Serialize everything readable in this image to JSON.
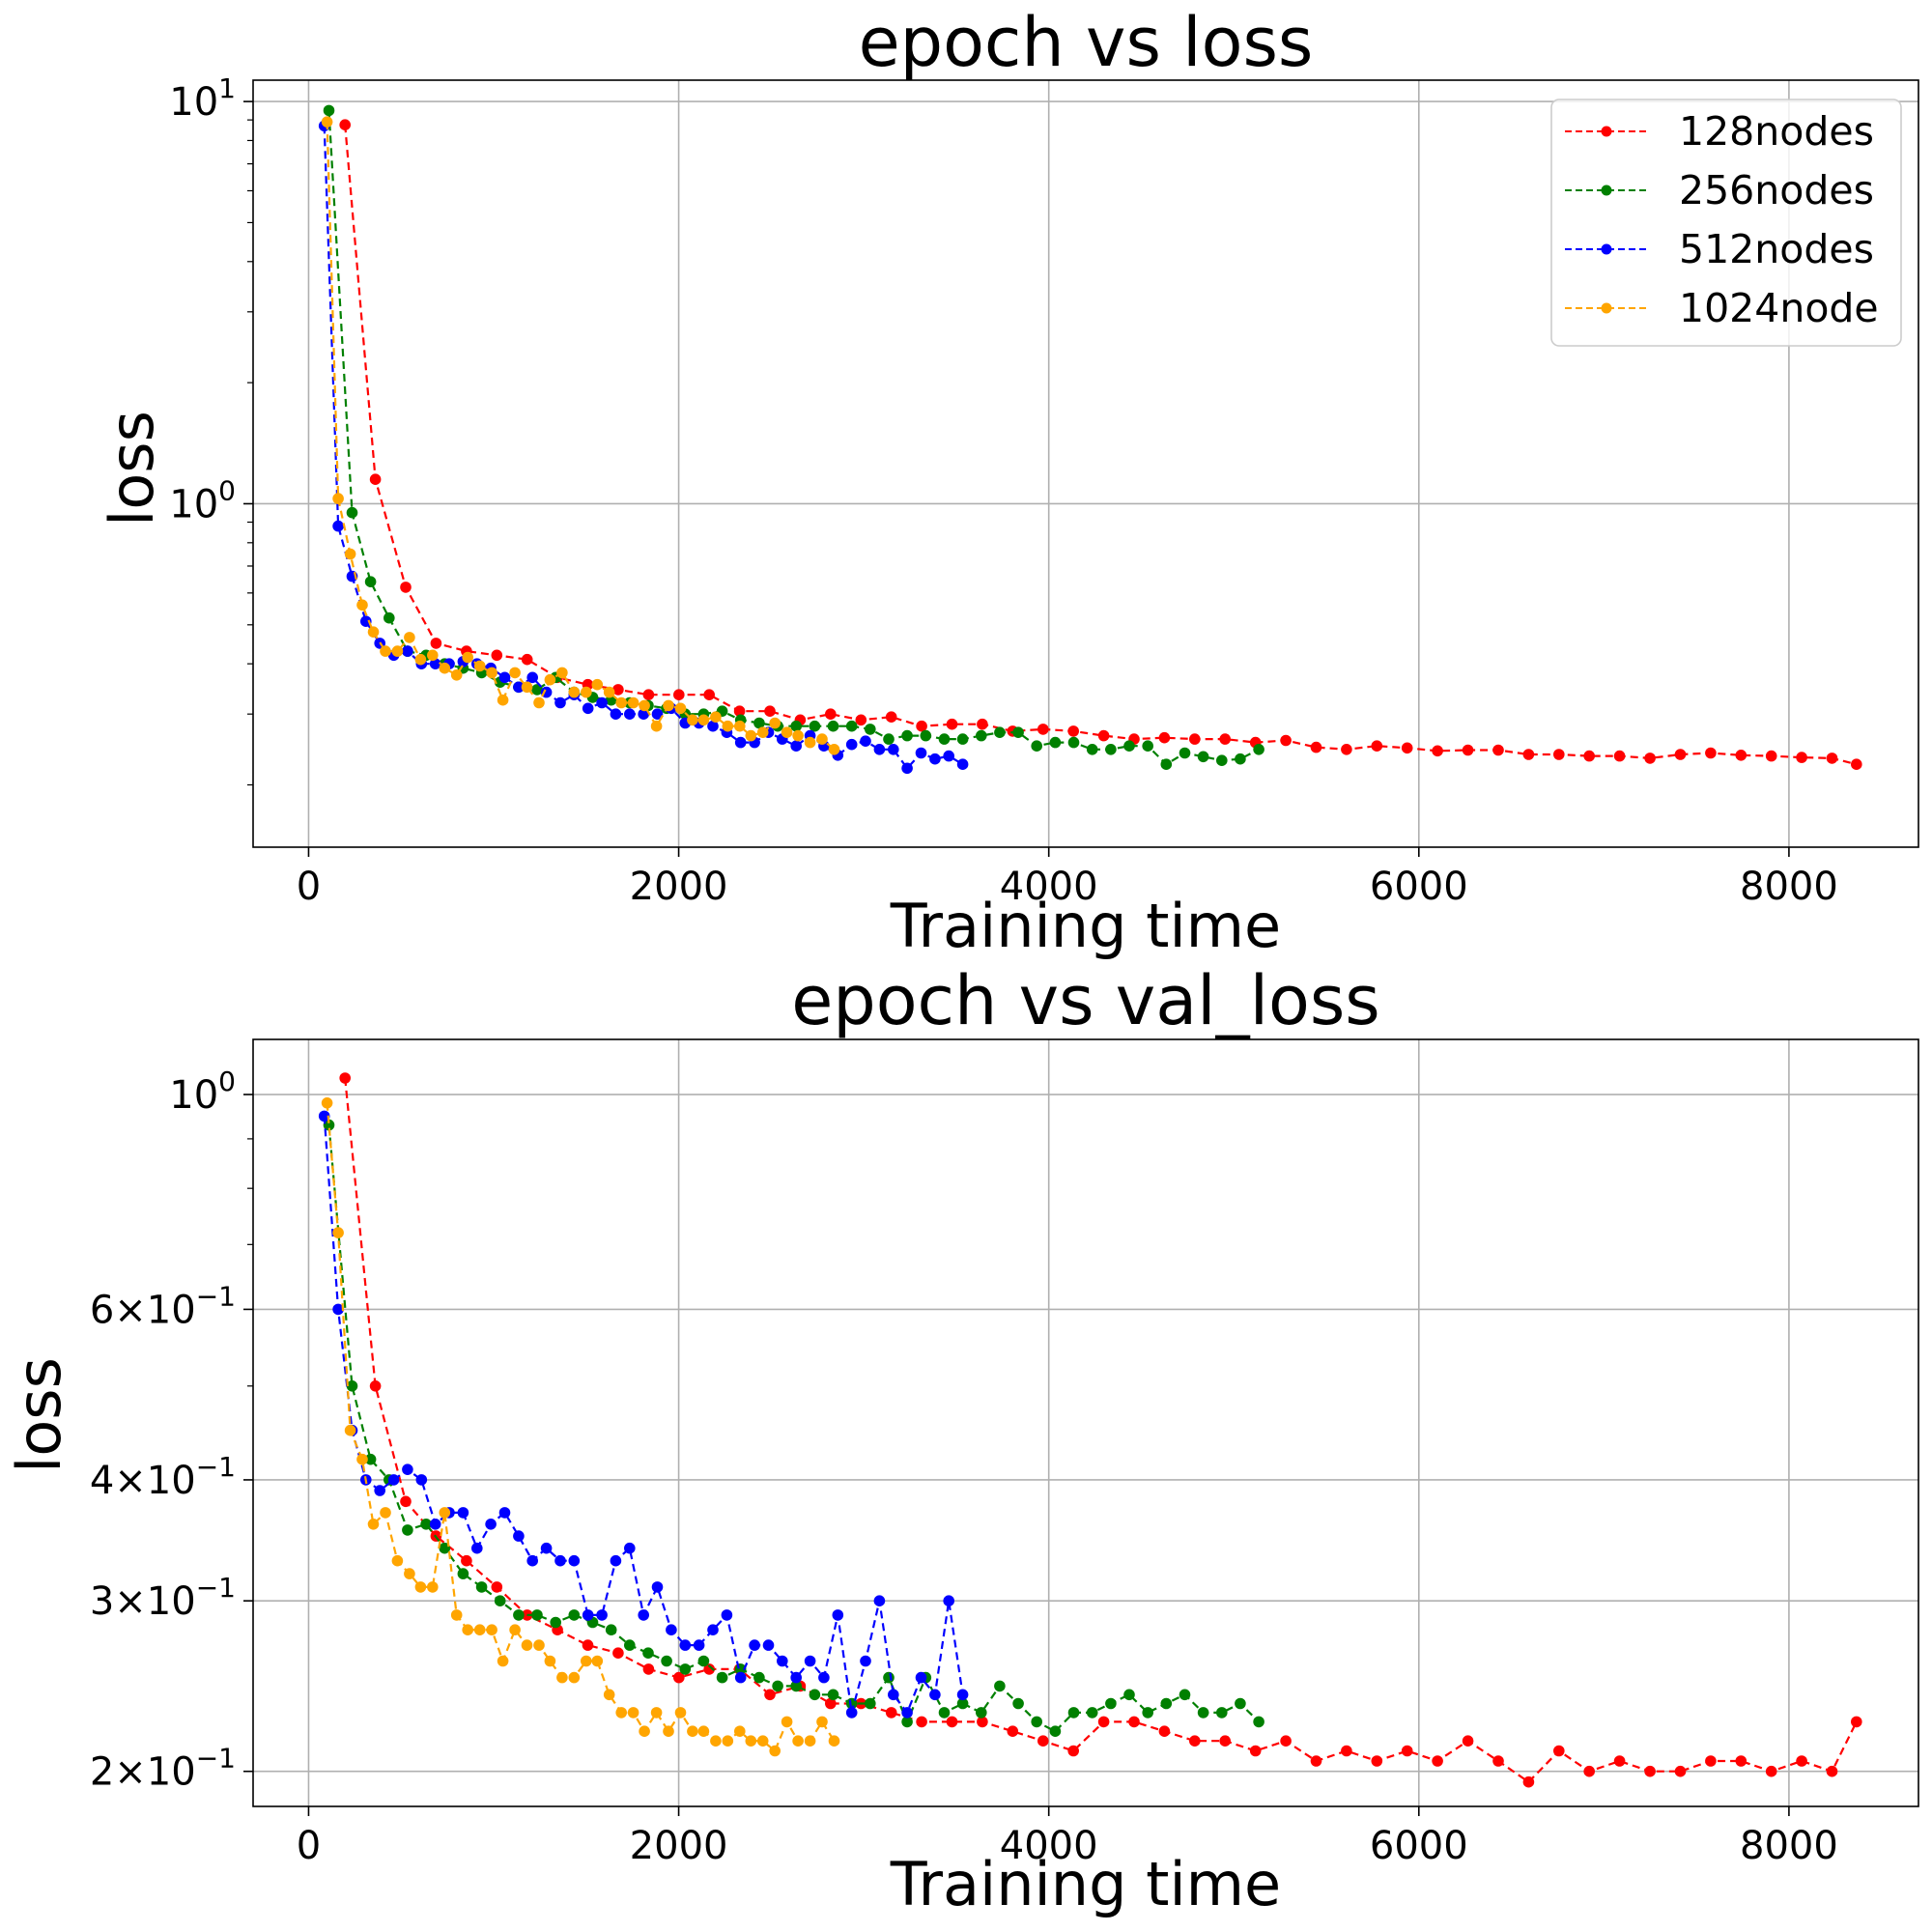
{
  "chart_data": [
    {
      "type": "line",
      "title": "epoch vs loss",
      "xlabel": "Training time",
      "ylabel": "loss",
      "yscale": "log",
      "xlim": [
        -300,
        8700
      ],
      "ylim": [
        0.14,
        11.3
      ],
      "xticks": [
        0,
        2000,
        4000,
        6000,
        8000
      ],
      "yticks": [
        {
          "value": 1,
          "base": "10",
          "exp": "0"
        },
        {
          "value": 10,
          "base": "10",
          "exp": "1"
        }
      ],
      "grid": true,
      "legend": "top-right",
      "series": [
        {
          "name": "128nodes",
          "color": "#ff0000",
          "x": [
            197,
            361,
            525,
            689,
            853,
            1017,
            1181,
            1345,
            1509,
            1673,
            1837,
            2001,
            2165,
            2329,
            2493,
            2657,
            2821,
            2985,
            3149,
            3313,
            3477,
            3641,
            3805,
            3969,
            4133,
            4297,
            4461,
            4625,
            4789,
            4953,
            5117,
            5281,
            5445,
            5609,
            5773,
            5937,
            6101,
            6265,
            6429,
            6593,
            6757,
            6921,
            7085,
            7249,
            7413,
            7577,
            7741,
            7905,
            8069,
            8233,
            8365
          ],
          "y": [
            8.75,
            1.15,
            0.62,
            0.45,
            0.43,
            0.42,
            0.41,
            0.37,
            0.355,
            0.345,
            0.335,
            0.335,
            0.335,
            0.305,
            0.305,
            0.29,
            0.3,
            0.29,
            0.295,
            0.28,
            0.283,
            0.283,
            0.272,
            0.275,
            0.272,
            0.265,
            0.26,
            0.262,
            0.26,
            0.26,
            0.255,
            0.258,
            0.248,
            0.245,
            0.25,
            0.247,
            0.243,
            0.244,
            0.244,
            0.238,
            0.238,
            0.236,
            0.236,
            0.233,
            0.238,
            0.24,
            0.237,
            0.236,
            0.234,
            0.233,
            0.225
          ]
        },
        {
          "name": "256nodes",
          "color": "#008000",
          "x": [
            110,
            235,
            335,
            435,
            535,
            635,
            735,
            835,
            935,
            1035,
            1135,
            1235,
            1335,
            1435,
            1535,
            1635,
            1735,
            1835,
            1935,
            2035,
            2135,
            2235,
            2335,
            2435,
            2535,
            2635,
            2735,
            2835,
            2935,
            3035,
            3135,
            3235,
            3335,
            3435,
            3535,
            3635,
            3735,
            3835,
            3935,
            4035,
            4135,
            4235,
            4335,
            4435,
            4535,
            4635,
            4735,
            4835,
            4935,
            5035,
            5135
          ],
          "y": [
            9.5,
            0.95,
            0.64,
            0.52,
            0.43,
            0.42,
            0.4,
            0.39,
            0.38,
            0.36,
            0.35,
            0.345,
            0.37,
            0.34,
            0.33,
            0.325,
            0.32,
            0.315,
            0.31,
            0.3,
            0.3,
            0.305,
            0.29,
            0.285,
            0.28,
            0.28,
            0.28,
            0.28,
            0.28,
            0.275,
            0.26,
            0.265,
            0.265,
            0.26,
            0.26,
            0.265,
            0.27,
            0.27,
            0.25,
            0.255,
            0.255,
            0.245,
            0.245,
            0.25,
            0.25,
            0.225,
            0.24,
            0.235,
            0.23,
            0.232,
            0.245
          ]
        },
        {
          "name": "512nodes",
          "color": "#0000ff",
          "x": [
            85,
            160,
            235,
            310,
            385,
            460,
            535,
            610,
            685,
            760,
            835,
            910,
            985,
            1060,
            1135,
            1210,
            1285,
            1360,
            1435,
            1510,
            1585,
            1660,
            1735,
            1810,
            1885,
            1960,
            2035,
            2110,
            2185,
            2260,
            2335,
            2410,
            2485,
            2560,
            2635,
            2710,
            2785,
            2860,
            2935,
            3010,
            3085,
            3160,
            3235,
            3310,
            3385,
            3460,
            3535
          ],
          "y": [
            8.7,
            0.88,
            0.66,
            0.51,
            0.45,
            0.42,
            0.43,
            0.4,
            0.4,
            0.4,
            0.405,
            0.4,
            0.39,
            0.37,
            0.35,
            0.37,
            0.34,
            0.32,
            0.335,
            0.31,
            0.32,
            0.3,
            0.3,
            0.3,
            0.3,
            0.31,
            0.285,
            0.285,
            0.28,
            0.27,
            0.255,
            0.255,
            0.27,
            0.26,
            0.25,
            0.265,
            0.25,
            0.237,
            0.252,
            0.257,
            0.245,
            0.245,
            0.22,
            0.24,
            0.232,
            0.236,
            0.225
          ]
        },
        {
          "name": "1024node",
          "color": "#ffa500",
          "x": [
            100,
            160,
            225,
            290,
            350,
            415,
            480,
            545,
            605,
            670,
            735,
            800,
            860,
            925,
            990,
            1050,
            1115,
            1180,
            1245,
            1305,
            1370,
            1435,
            1500,
            1560,
            1625,
            1690,
            1755,
            1815,
            1880,
            1945,
            2010,
            2075,
            2135,
            2200,
            2265,
            2330,
            2390,
            2455,
            2520,
            2585,
            2645,
            2710,
            2775,
            2840
          ],
          "y": [
            8.9,
            1.03,
            0.75,
            0.56,
            0.48,
            0.43,
            0.43,
            0.465,
            0.41,
            0.42,
            0.39,
            0.375,
            0.415,
            0.395,
            0.38,
            0.325,
            0.38,
            0.35,
            0.32,
            0.365,
            0.38,
            0.34,
            0.34,
            0.355,
            0.34,
            0.32,
            0.32,
            0.315,
            0.28,
            0.315,
            0.31,
            0.29,
            0.29,
            0.295,
            0.28,
            0.28,
            0.265,
            0.27,
            0.285,
            0.27,
            0.265,
            0.255,
            0.26,
            0.245
          ]
        }
      ]
    },
    {
      "type": "line",
      "title": "epoch vs val_loss",
      "xlabel": "Training time",
      "ylabel": "loss",
      "yscale": "log",
      "xlim": [
        -300,
        8700
      ],
      "ylim": [
        0.184,
        1.14
      ],
      "xticks": [
        0,
        2000,
        4000,
        6000,
        8000
      ],
      "yticks": [
        {
          "value": 0.2,
          "base": "2×10",
          "exp": "−1"
        },
        {
          "value": 0.3,
          "base": "3×10",
          "exp": "−1"
        },
        {
          "value": 0.4,
          "base": "4×10",
          "exp": "−1"
        },
        {
          "value": 0.6,
          "base": "6×10",
          "exp": "−1"
        },
        {
          "value": 1,
          "base": "10",
          "exp": "0"
        }
      ],
      "grid": true,
      "series": [
        {
          "name": "128nodes",
          "color": "#ff0000",
          "x": [
            197,
            361,
            525,
            689,
            853,
            1017,
            1181,
            1345,
            1509,
            1673,
            1837,
            2001,
            2165,
            2329,
            2493,
            2657,
            2821,
            2985,
            3149,
            3313,
            3477,
            3641,
            3805,
            3969,
            4133,
            4297,
            4461,
            4625,
            4789,
            4953,
            5117,
            5281,
            5445,
            5609,
            5773,
            5937,
            6101,
            6265,
            6429,
            6593,
            6757,
            6921,
            7085,
            7249,
            7413,
            7577,
            7741,
            7905,
            8069,
            8233,
            8365
          ],
          "y": [
            1.04,
            0.5,
            0.38,
            0.35,
            0.33,
            0.31,
            0.29,
            0.28,
            0.27,
            0.265,
            0.255,
            0.25,
            0.255,
            0.255,
            0.24,
            0.245,
            0.235,
            0.235,
            0.23,
            0.225,
            0.225,
            0.225,
            0.22,
            0.215,
            0.21,
            0.225,
            0.225,
            0.22,
            0.215,
            0.215,
            0.21,
            0.215,
            0.205,
            0.21,
            0.205,
            0.21,
            0.205,
            0.215,
            0.205,
            0.195,
            0.21,
            0.2,
            0.205,
            0.2,
            0.2,
            0.205,
            0.205,
            0.2,
            0.205,
            0.2,
            0.225
          ]
        },
        {
          "name": "256nodes",
          "color": "#008000",
          "x": [
            110,
            235,
            335,
            435,
            535,
            635,
            735,
            835,
            935,
            1035,
            1135,
            1235,
            1335,
            1435,
            1535,
            1635,
            1735,
            1835,
            1935,
            2035,
            2135,
            2235,
            2335,
            2435,
            2535,
            2635,
            2735,
            2835,
            2935,
            3035,
            3135,
            3235,
            3335,
            3435,
            3535,
            3635,
            3735,
            3835,
            3935,
            4035,
            4135,
            4235,
            4335,
            4435,
            4535,
            4635,
            4735,
            4835,
            4935,
            5035,
            5135
          ],
          "y": [
            0.93,
            0.5,
            0.42,
            0.4,
            0.355,
            0.36,
            0.34,
            0.32,
            0.31,
            0.3,
            0.29,
            0.29,
            0.285,
            0.29,
            0.285,
            0.28,
            0.27,
            0.265,
            0.26,
            0.255,
            0.26,
            0.25,
            0.255,
            0.25,
            0.245,
            0.245,
            0.24,
            0.24,
            0.235,
            0.235,
            0.25,
            0.225,
            0.25,
            0.23,
            0.235,
            0.23,
            0.245,
            0.235,
            0.225,
            0.22,
            0.23,
            0.23,
            0.235,
            0.24,
            0.23,
            0.235,
            0.24,
            0.23,
            0.23,
            0.235,
            0.225
          ]
        },
        {
          "name": "512nodes",
          "color": "#0000ff",
          "x": [
            85,
            160,
            235,
            310,
            385,
            460,
            535,
            610,
            685,
            760,
            835,
            910,
            985,
            1060,
            1135,
            1210,
            1285,
            1360,
            1435,
            1510,
            1585,
            1660,
            1735,
            1810,
            1885,
            1960,
            2035,
            2110,
            2185,
            2260,
            2335,
            2410,
            2485,
            2560,
            2635,
            2710,
            2785,
            2860,
            2935,
            3010,
            3085,
            3160,
            3235,
            3310,
            3385,
            3460,
            3535
          ],
          "y": [
            0.95,
            0.6,
            0.45,
            0.4,
            0.39,
            0.4,
            0.41,
            0.4,
            0.36,
            0.37,
            0.37,
            0.34,
            0.36,
            0.37,
            0.35,
            0.33,
            0.34,
            0.33,
            0.33,
            0.29,
            0.29,
            0.33,
            0.34,
            0.29,
            0.31,
            0.28,
            0.27,
            0.27,
            0.28,
            0.29,
            0.25,
            0.27,
            0.27,
            0.26,
            0.25,
            0.26,
            0.25,
            0.29,
            0.23,
            0.26,
            0.3,
            0.24,
            0.23,
            0.25,
            0.24,
            0.3,
            0.24
          ]
        },
        {
          "name": "1024node",
          "color": "#ffa500",
          "x": [
            100,
            160,
            225,
            290,
            350,
            415,
            480,
            545,
            605,
            670,
            735,
            800,
            860,
            925,
            990,
            1050,
            1115,
            1180,
            1245,
            1305,
            1370,
            1435,
            1500,
            1560,
            1625,
            1690,
            1755,
            1815,
            1880,
            1945,
            2010,
            2075,
            2135,
            2200,
            2265,
            2330,
            2390,
            2455,
            2520,
            2585,
            2645,
            2710,
            2775,
            2840
          ],
          "y": [
            0.98,
            0.72,
            0.45,
            0.42,
            0.36,
            0.37,
            0.33,
            0.32,
            0.31,
            0.31,
            0.37,
            0.29,
            0.28,
            0.28,
            0.28,
            0.26,
            0.28,
            0.27,
            0.27,
            0.26,
            0.25,
            0.25,
            0.26,
            0.26,
            0.24,
            0.23,
            0.23,
            0.22,
            0.23,
            0.22,
            0.23,
            0.22,
            0.22,
            0.215,
            0.215,
            0.22,
            0.215,
            0.215,
            0.21,
            0.225,
            0.215,
            0.215,
            0.225,
            0.215
          ]
        }
      ]
    }
  ]
}
